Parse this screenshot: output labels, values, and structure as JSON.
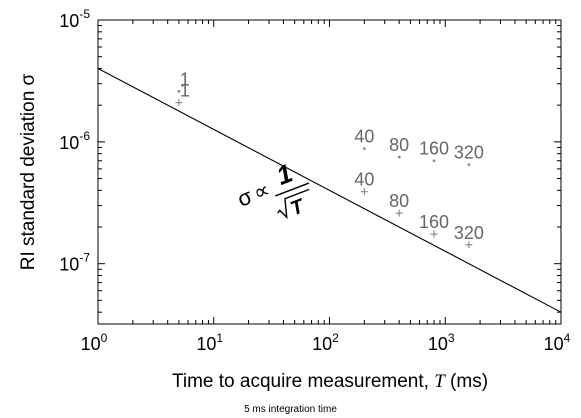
{
  "chart_data": {
    "type": "scatter",
    "xscale": "log",
    "yscale": "log",
    "xlim": [
      1,
      10000
    ],
    "ylim": [
      3.2e-08,
      1e-05
    ],
    "xticks": [
      {
        "value": 1,
        "base": "10",
        "exp": "0"
      },
      {
        "value": 10,
        "base": "10",
        "exp": "1"
      },
      {
        "value": 100,
        "base": "10",
        "exp": "2"
      },
      {
        "value": 1000,
        "base": "10",
        "exp": "3"
      },
      {
        "value": 10000,
        "base": "10",
        "exp": "4"
      }
    ],
    "yticks": [
      {
        "value": 1e-05,
        "base": "10",
        "exp": "-5"
      },
      {
        "value": 1e-06,
        "base": "10",
        "exp": "-6"
      },
      {
        "value": 1e-07,
        "base": "10",
        "exp": "-7"
      }
    ],
    "xlabel": "Time to acquire measurement, ",
    "xlabel_var": "T",
    "xlabel_unit": " (ms)",
    "ylabel": "RI standard deviation σ",
    "grid": false,
    "series": [
      {
        "marker": "dot",
        "points": [
          {
            "x": 5,
            "y": 2.6e-06,
            "label": "1"
          },
          {
            "x": 200,
            "y": 8.8e-07,
            "label": "40"
          },
          {
            "x": 400,
            "y": 7.5e-07,
            "label": "80"
          },
          {
            "x": 800,
            "y": 7e-07,
            "label": "160"
          },
          {
            "x": 1600,
            "y": 6.5e-07,
            "label": "320"
          }
        ]
      },
      {
        "marker": "plus",
        "points": [
          {
            "x": 5,
            "y": 2.1e-06,
            "label": "1"
          },
          {
            "x": 200,
            "y": 3.9e-07,
            "label": "40"
          },
          {
            "x": 400,
            "y": 2.6e-07,
            "label": "80"
          },
          {
            "x": 800,
            "y": 1.75e-07,
            "label": "160"
          },
          {
            "x": 1600,
            "y": 1.43e-07,
            "label": "320"
          }
        ]
      }
    ],
    "fit_line": {
      "x": [
        1,
        10000
      ],
      "y": [
        4e-06,
        4e-08
      ]
    },
    "annotation": {
      "sigma": "σ",
      "prop": "∝",
      "numerator": "1",
      "radicand": "T"
    }
  },
  "caption": "5 ms integration time"
}
